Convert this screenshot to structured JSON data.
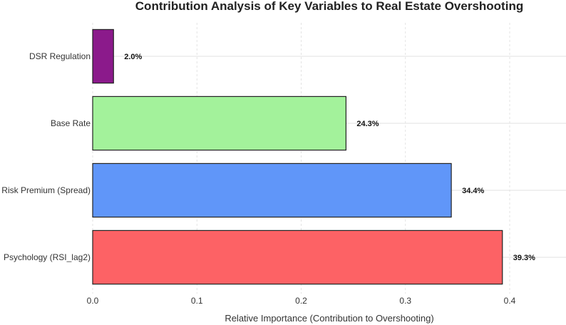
{
  "chart_data": {
    "type": "bar",
    "orientation": "horizontal",
    "title": "Contribution Analysis of Key Variables to Real Estate Overshooting",
    "xlabel": "Relative Importance (Contribution to Overshooting)",
    "ylabel": "",
    "xlim": [
      0,
      0.4
    ],
    "xticks": [
      0.0,
      0.1,
      0.2,
      0.3,
      0.4
    ],
    "xtick_labels": [
      "0.0",
      "0.1",
      "0.2",
      "0.3",
      "0.4"
    ],
    "categories": [
      "DSR Regulation",
      "Base Rate",
      "Risk Premium (Spread)",
      "Psychology (RSI_lag2)"
    ],
    "values": [
      0.02,
      0.243,
      0.344,
      0.393
    ],
    "data_labels": [
      "2.0%",
      "24.3%",
      "34.4%",
      "39.3%"
    ],
    "colors": [
      "#8b1a8b",
      "#a3f29b",
      "#6096f9",
      "#fd6265"
    ],
    "grid": true,
    "legend": "none"
  }
}
